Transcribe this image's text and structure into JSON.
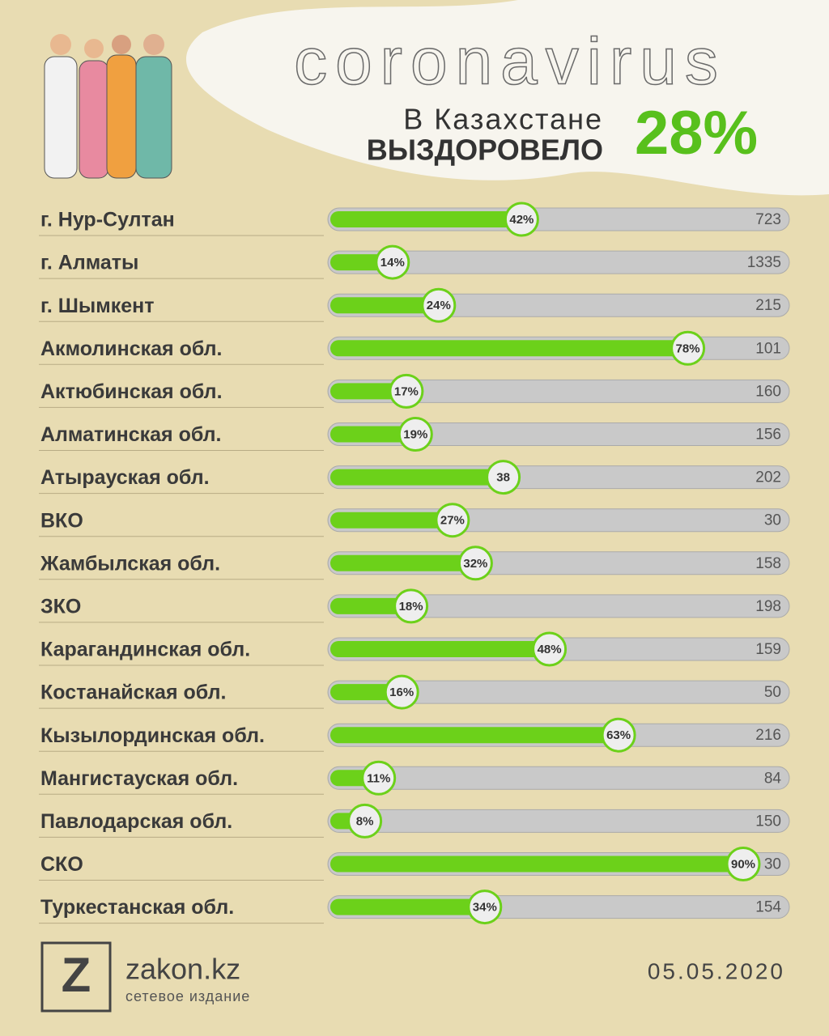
{
  "chart_data": {
    "type": "hbar",
    "title": "coronavirus",
    "subtitle_line1": "В Казахстане",
    "subtitle_line2": "ВЫЗДОРОВЕЛО",
    "headline": "28%",
    "categories": [
      "г. Нур-Султан",
      "г. Алматы",
      "г. Шымкент",
      "Акмолинская обл.",
      "Актюбинская обл.",
      "Алматинская обл.",
      "Атырауская обл.",
      "ВКО",
      "Жамбылская обл.",
      "ЗКО",
      "Карагандинская обл.",
      "Костанайская обл.",
      "Кызылординская обл.",
      "Мангистауская обл.",
      "Павлодарская обл.",
      "СКО",
      "Туркестанская обл."
    ],
    "values": [
      42,
      14,
      24,
      78,
      17,
      19,
      38,
      27,
      32,
      18,
      48,
      16,
      63,
      11,
      8,
      90,
      34
    ],
    "value_labels": [
      "42%",
      "14%",
      "24%",
      "78%",
      "17%",
      "19%",
      "38",
      "27%",
      "32%",
      "18%",
      "48%",
      "16%",
      "63%",
      "11%",
      "8%",
      "90%",
      "34%"
    ],
    "totals": [
      723,
      1335,
      215,
      101,
      160,
      156,
      202,
      30,
      158,
      198,
      159,
      50,
      216,
      84,
      150,
      30,
      154
    ],
    "xlim": [
      0,
      100
    ],
    "color": "#6cd11a",
    "track_color": "#c9c9c9",
    "logo_letter": "Z",
    "site": "zakon.kz",
    "site_caption": "сетевое издание",
    "date": "05.05.2020"
  }
}
